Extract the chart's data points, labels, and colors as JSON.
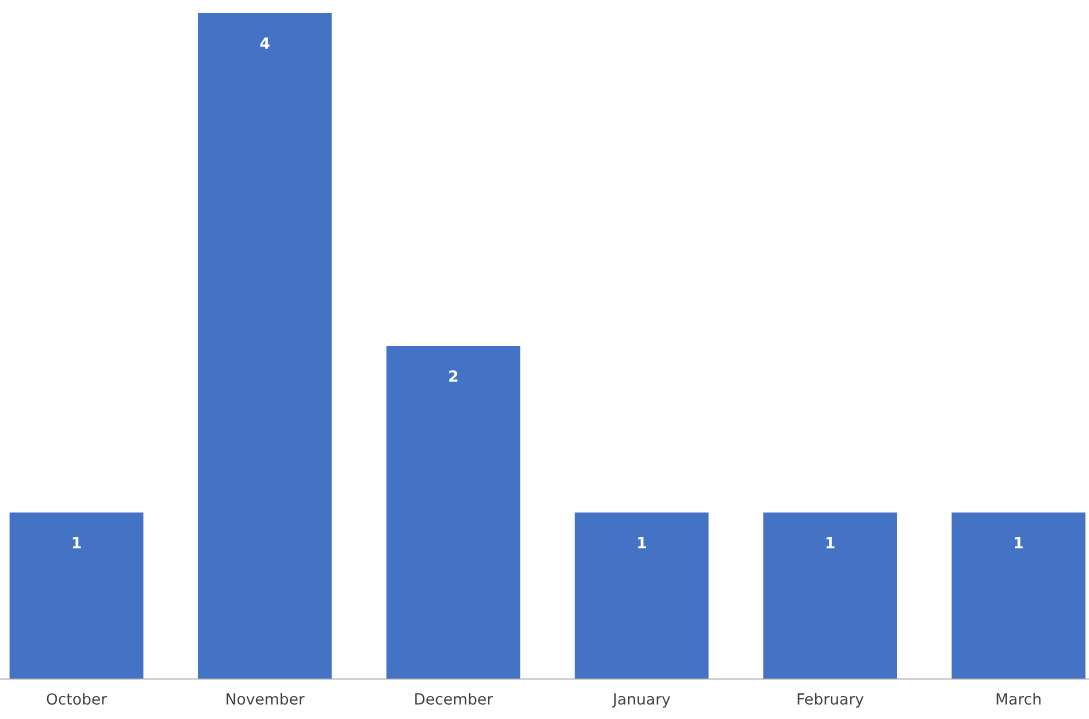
{
  "chart_data": {
    "type": "bar",
    "categories": [
      "October",
      "November",
      "December",
      "January",
      "February",
      "March"
    ],
    "values": [
      1,
      4,
      2,
      1,
      1,
      1
    ],
    "color": "#4472c4",
    "data_labels": true,
    "grid": false,
    "legend": false
  }
}
